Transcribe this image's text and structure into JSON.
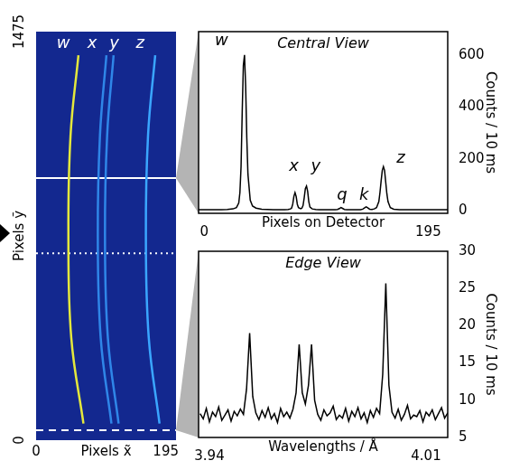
{
  "chart_data": [
    {
      "type": "image",
      "xlabel": "Pixels x̃",
      "ylabel": "Pixels ỹ",
      "xlim": [
        0,
        195
      ],
      "ylim": [
        0,
        1475
      ],
      "xticks": [
        0,
        195
      ],
      "yticks": [
        0,
        1475
      ],
      "series": [
        {
          "color": "#e4e83c",
          "x": [
            59,
            48,
            45,
            49,
            66
          ],
          "values": [
            1390,
            1100,
            740,
            370,
            60
          ]
        },
        {
          "color": "#2f86e8",
          "x": [
            98,
            89,
            86,
            90,
            105
          ],
          "values": [
            1390,
            1100,
            740,
            370,
            60
          ]
        },
        {
          "color": "#2f86e8",
          "x": [
            108,
            99,
            96,
            100,
            115
          ],
          "values": [
            1390,
            1100,
            740,
            370,
            60
          ]
        },
        {
          "color": "#3aa6ff",
          "x": [
            166,
            156,
            153,
            157,
            172
          ],
          "values": [
            1390,
            1100,
            740,
            370,
            60
          ]
        },
        {
          "color": "#ffffff",
          "line_style": "solid",
          "x": [
            0,
            195
          ],
          "values": [
            946,
            946
          ]
        },
        {
          "color": "#ffffff",
          "line_style": "dotted",
          "x": [
            0,
            195
          ],
          "values": [
            675,
            675
          ]
        },
        {
          "color": "#ffffff",
          "line_style": "dashed",
          "x": [
            0,
            195
          ],
          "values": [
            36,
            36
          ]
        }
      ],
      "annotations": [
        {
          "text": "w",
          "x": 38,
          "y": 1430
        },
        {
          "text": "x",
          "x": 78,
          "y": 1430
        },
        {
          "text": "y",
          "x": 109,
          "y": 1430
        },
        {
          "text": "z",
          "x": 145,
          "y": 1430
        }
      ]
    },
    {
      "type": "line",
      "title": "Central View",
      "xlabel": "Pixels on Detector",
      "ylabel": "Counts / 10 ms",
      "xlim": [
        -5,
        212
      ],
      "xticks": [
        0,
        195
      ],
      "ylim": [
        -10,
        690
      ],
      "yticks": [
        0,
        200,
        400,
        600
      ],
      "color": "#000000",
      "x": [
        -5,
        0,
        5,
        10,
        15,
        20,
        25,
        28,
        30,
        31,
        32,
        33,
        34,
        35,
        36,
        37,
        38,
        40,
        42,
        45,
        50,
        55,
        60,
        65,
        70,
        73,
        75,
        76,
        77,
        78,
        79,
        80,
        81,
        82,
        84,
        85,
        86,
        87,
        88,
        89,
        90,
        91,
        92,
        94,
        97,
        100,
        105,
        110,
        114,
        116,
        118,
        119,
        120,
        122,
        124,
        128,
        132,
        136,
        138,
        140,
        141,
        142,
        144,
        146,
        148,
        150,
        152,
        153,
        154,
        155,
        156,
        157,
        158,
        159,
        160,
        162,
        165,
        170,
        175,
        180,
        185,
        190,
        195,
        200,
        205,
        212
      ],
      "values": [
        4,
        4,
        4,
        4,
        4,
        5,
        7,
        12,
        30,
        70,
        170,
        380,
        560,
        600,
        480,
        280,
        140,
        40,
        18,
        10,
        6,
        5,
        4,
        4,
        4,
        5,
        7,
        10,
        25,
        55,
        70,
        55,
        25,
        12,
        8,
        10,
        20,
        50,
        85,
        95,
        75,
        35,
        14,
        7,
        5,
        4,
        4,
        4,
        4,
        5,
        9,
        12,
        10,
        5,
        4,
        4,
        4,
        4,
        6,
        12,
        15,
        12,
        6,
        5,
        7,
        12,
        35,
        70,
        115,
        155,
        170,
        155,
        110,
        65,
        35,
        12,
        6,
        4,
        4,
        4,
        4,
        4,
        4,
        4,
        4,
        4
      ],
      "annotations": [
        {
          "text": "w",
          "x": 15,
          "y": 655
        },
        {
          "text": "x",
          "x": 78,
          "y": 170
        },
        {
          "text": "y",
          "x": 97,
          "y": 170
        },
        {
          "text": "q",
          "x": 120,
          "y": 60
        },
        {
          "text": "k",
          "x": 139,
          "y": 60
        },
        {
          "text": "z",
          "x": 171,
          "y": 200
        }
      ]
    },
    {
      "type": "line",
      "title": "Edge View",
      "xlabel": "Wavelengths / Å",
      "ylabel": "Counts / 10 ms",
      "xlim": [
        3.9365,
        4.017
      ],
      "xticks": [
        3.94,
        4.01
      ],
      "ylim": [
        5,
        30
      ],
      "yticks": [
        5,
        10,
        15,
        20,
        25,
        30
      ],
      "color": "#000000",
      "x": [
        3.937,
        3.938,
        3.939,
        3.94,
        3.941,
        3.942,
        3.943,
        3.944,
        3.945,
        3.946,
        3.947,
        3.948,
        3.949,
        3.95,
        3.951,
        3.952,
        3.953,
        3.954,
        3.955,
        3.956,
        3.957,
        3.958,
        3.959,
        3.96,
        3.961,
        3.962,
        3.963,
        3.964,
        3.965,
        3.966,
        3.967,
        3.968,
        3.969,
        3.97,
        3.971,
        3.972,
        3.973,
        3.974,
        3.975,
        3.976,
        3.977,
        3.978,
        3.979,
        3.98,
        3.981,
        3.982,
        3.983,
        3.984,
        3.985,
        3.986,
        3.987,
        3.988,
        3.989,
        3.99,
        3.991,
        3.992,
        3.993,
        3.994,
        3.995,
        3.996,
        3.997,
        3.998,
        3.999,
        4.0,
        4.001,
        4.002,
        4.003,
        4.004,
        4.005,
        4.006,
        4.007,
        4.008,
        4.009,
        4.01,
        4.011,
        4.012,
        4.013,
        4.014,
        4.015,
        4.016,
        4.017
      ],
      "values": [
        8.2,
        7.5,
        8.9,
        7.1,
        8.4,
        7.8,
        9.1,
        7.3,
        8.0,
        8.7,
        7.2,
        8.5,
        7.9,
        8.8,
        8.1,
        11.5,
        19.0,
        10.5,
        8.3,
        7.4,
        8.6,
        7.7,
        9.0,
        7.5,
        8.2,
        7.0,
        8.9,
        7.8,
        8.4,
        7.6,
        8.8,
        11.0,
        17.5,
        11.0,
        9.5,
        12.0,
        17.5,
        10.0,
        8.1,
        7.3,
        8.7,
        7.9,
        8.3,
        9.2,
        7.4,
        8.0,
        7.6,
        8.9,
        7.2,
        8.5,
        7.8,
        9.0,
        7.5,
        8.3,
        7.0,
        8.6,
        7.7,
        8.9,
        8.2,
        13.5,
        25.7,
        12.0,
        8.4,
        7.6,
        8.8,
        7.3,
        8.1,
        9.3,
        7.5,
        8.0,
        7.8,
        8.6,
        7.1,
        8.4,
        7.9,
        8.7,
        7.4,
        8.2,
        9.0,
        7.6,
        8.3
      ]
    }
  ]
}
